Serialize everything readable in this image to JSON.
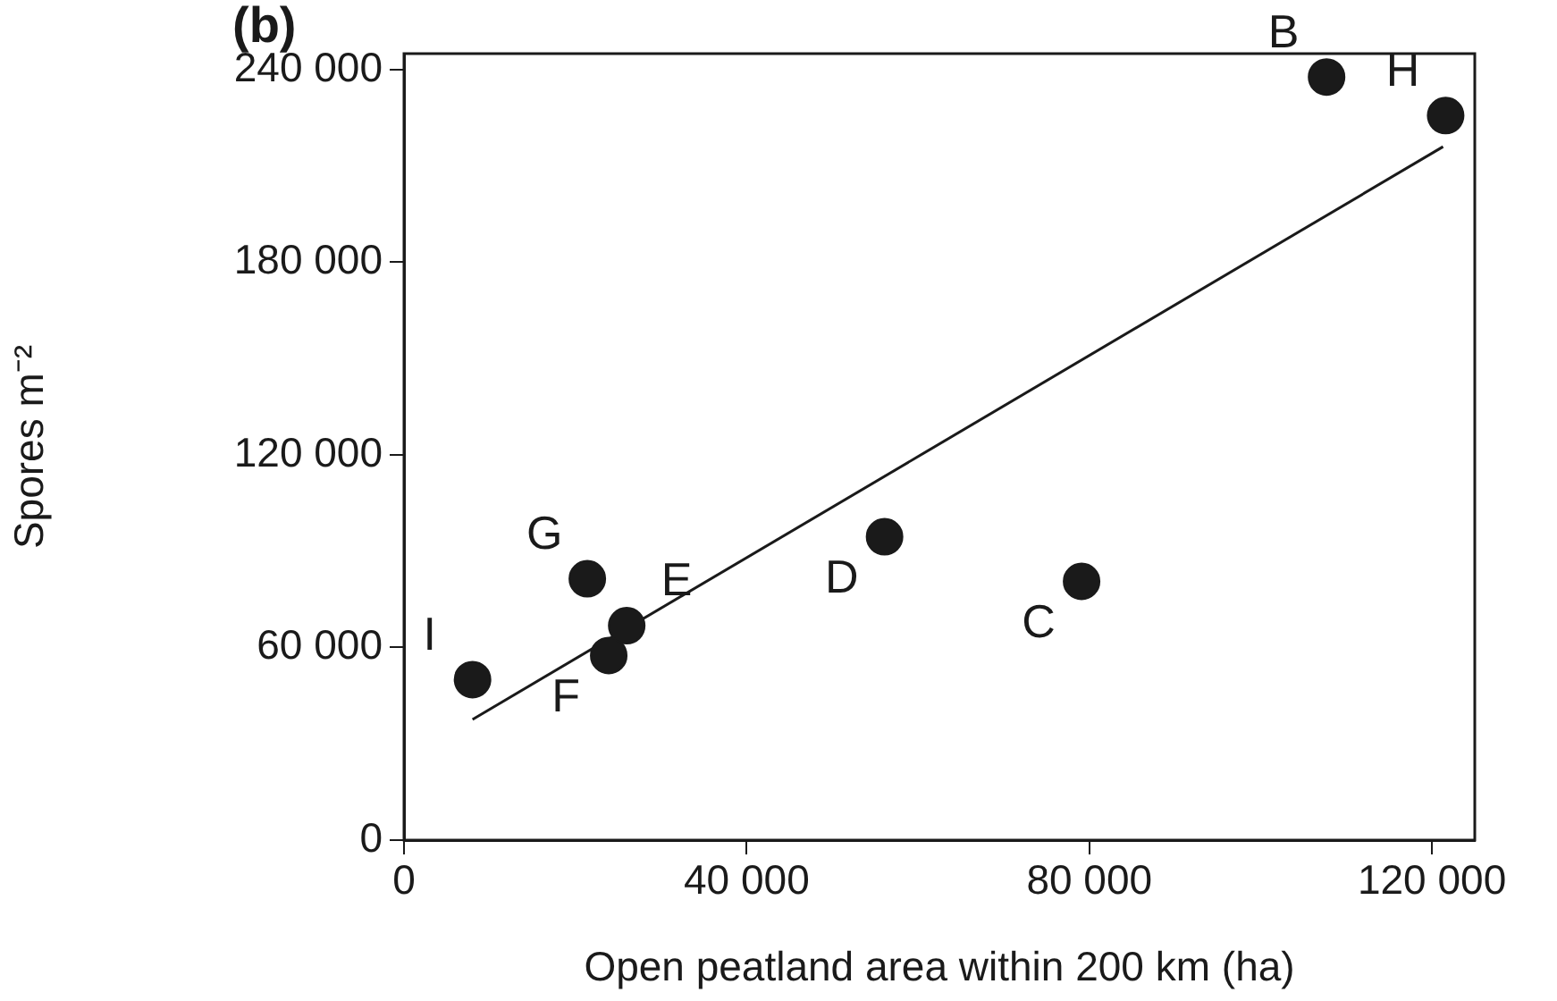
{
  "chart_data": {
    "type": "scatter",
    "xlabel": "Open peatland area within 200 km (ha)",
    "ylabel": "Spores m⁻²",
    "xlim": [
      0,
      125000
    ],
    "ylim": [
      0,
      245000
    ],
    "xticks": [
      0,
      {
        "value": 40000,
        "label": "40 000"
      },
      {
        "value": 80000,
        "label": "80 000"
      },
      {
        "value": 120000,
        "label": "120 000"
      }
    ],
    "yticks": [
      0,
      {
        "value": 60000,
        "label": "60 000"
      },
      {
        "value": 120000,
        "label": "120 000"
      },
      {
        "value": 180000,
        "label": "180 000"
      },
      {
        "value": 240000,
        "label": "240 000"
      }
    ],
    "marker": "circle",
    "series": [
      {
        "color": "#1a1a1a",
        "x": [
          8000,
          23900,
          21400,
          26000,
          56100,
          79100,
          107700,
          121600
        ],
        "values": [
          50000,
          57500,
          81400,
          66800,
          94500,
          80600,
          237700,
          225700
        ]
      },
      {
        "type": "line",
        "color": "#1a1a1a",
        "marker": "none",
        "x": [
          8000,
          121300
        ],
        "values": [
          37600,
          216000
        ]
      }
    ],
    "annotations": [
      "(b)",
      {
        "text": "I",
        "x": 8000,
        "y": 50000
      },
      {
        "text": "F",
        "x": 23900,
        "y": 57500
      },
      {
        "text": "G",
        "x": 21400,
        "y": 81400
      },
      {
        "text": "E",
        "x": 26000,
        "y": 66800
      },
      {
        "text": "D",
        "x": 56100,
        "y": 94500
      },
      {
        "text": "C",
        "x": 79100,
        "y": 80600
      },
      {
        "text": "B",
        "x": 107700,
        "y": 237700
      },
      {
        "text": "H",
        "x": 121600,
        "y": 225700
      }
    ]
  }
}
